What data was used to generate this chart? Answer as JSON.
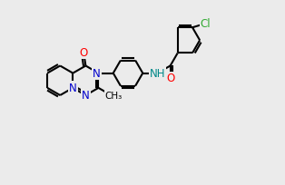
{
  "bg_color": "#ebebeb",
  "bond_color": "#000000",
  "bond_width": 1.5,
  "dbo": 0.055,
  "fs": 8.5,
  "atom_colors": {
    "N": "#0000cc",
    "O": "#ff0000",
    "Cl": "#33aa33",
    "NH": "#008888",
    "C": "#000000"
  },
  "xlim": [
    -3.1,
    3.6
  ],
  "ylim": [
    -2.1,
    2.1
  ]
}
